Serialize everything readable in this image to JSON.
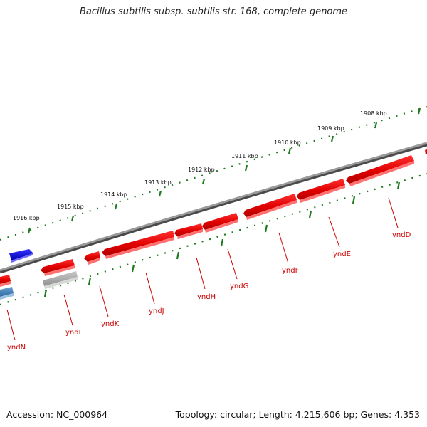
{
  "title": "Bacillus subtilis subsp. subtilis str. 168, complete genome",
  "footer": {
    "accession": "Accession: NC_000964",
    "stats": "Topology: circular; Length: 4,215,606 bp; Genes: 4,353"
  },
  "colors": {
    "backbone": "#808080",
    "tick": "#1f7a1f",
    "gene_forward": "#0000ee",
    "gene_reverse": "#ee0000",
    "gene_pseudo": "#b0b0b0",
    "gene_other": "#4a86c0",
    "gene_label": "#cc0000",
    "kbp_label": "#111111"
  },
  "kbp_labels": [
    "1908 kbp",
    "1909 kbp",
    "1910 kbp",
    "1911 kbp",
    "1912 kbp",
    "1913 kbp",
    "1914 kbp",
    "1915 kbp",
    "1916 kbp"
  ],
  "gene_labels": [
    "yndD",
    "yndE",
    "yndF",
    "yndG",
    "yndH",
    "yndJ",
    "yndK",
    "yndL",
    "yndN"
  ]
}
